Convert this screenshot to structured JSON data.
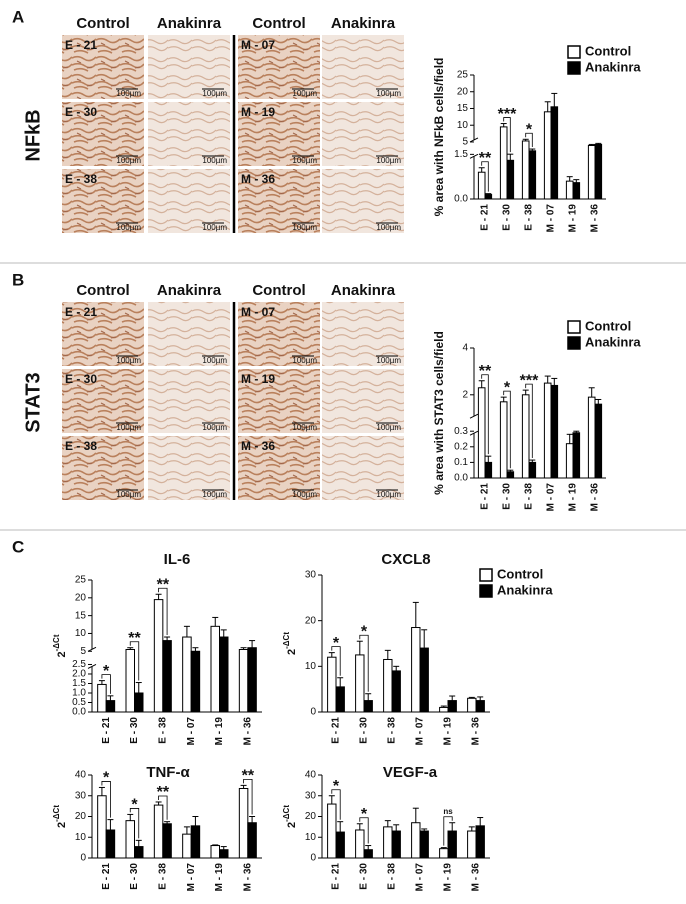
{
  "panels": [
    {
      "letter": "A",
      "marker": "NFkB",
      "column_headers": [
        "Control",
        "Anakinra",
        "Control",
        "Anakinra"
      ],
      "sample_labels": [
        "E - 21",
        "E - 30",
        "E - 38",
        "M - 07",
        "M - 19",
        "M - 36"
      ],
      "scale_label": "100µm"
    },
    {
      "letter": "B",
      "marker": "STAT3",
      "column_headers": [
        "Control",
        "Anakinra",
        "Control",
        "Anakinra"
      ],
      "sample_labels": [
        "E - 21",
        "E - 30",
        "E - 38",
        "M - 07",
        "M - 19",
        "M - 36"
      ],
      "scale_label": "100µm"
    },
    {
      "letter": "C"
    }
  ],
  "chart_data": [
    {
      "type": "bar",
      "ylabel": "% area with NFkB cells/field",
      "legend": true,
      "categories": [
        "E - 21",
        "E - 30",
        "E - 38",
        "M - 07",
        "M - 19",
        "M - 36"
      ],
      "series": [
        {
          "name": "Control",
          "color": "#ffffff",
          "values": [
            0.9,
            9.5,
            5.3,
            14,
            0.6,
            4.0
          ],
          "errors": [
            0.15,
            1,
            0.5,
            3,
            0.15,
            0.3
          ]
        },
        {
          "name": "Anakinra",
          "color": "#000000",
          "values": [
            0.15,
            1.3,
            2.5,
            15.5,
            0.55,
            4.3
          ],
          "errors": [
            0.03,
            0.25,
            0.5,
            4,
            0.1,
            0.3
          ]
        }
      ],
      "ylim": [
        0,
        25
      ],
      "ybreak": [
        1.5,
        5
      ],
      "yticks": [
        {
          "value": 0,
          "label": "0.0"
        },
        1.5,
        5,
        10,
        15,
        20,
        25
      ],
      "annotations": [
        {
          "text": "**",
          "category": "E - 21"
        },
        {
          "text": "***",
          "category": "E - 30"
        },
        {
          "text": "*",
          "category": "E - 38"
        }
      ]
    },
    {
      "type": "bar",
      "ylabel": "% area with STAT3 cells/field",
      "legend": true,
      "categories": [
        "E - 21",
        "E - 30",
        "E - 38",
        "M - 07",
        "M - 19",
        "M - 36"
      ],
      "series": [
        {
          "name": "Control",
          "color": "#ffffff",
          "values": [
            2.3,
            1.7,
            2.0,
            2.5,
            0.22,
            1.9
          ],
          "errors": [
            0.3,
            0.2,
            0.2,
            0.3,
            0.06,
            0.4
          ]
        },
        {
          "name": "Anakinra",
          "color": "#000000",
          "values": [
            0.1,
            0.04,
            0.1,
            2.4,
            0.29,
            1.6
          ],
          "errors": [
            0.04,
            0.01,
            0.015,
            0.3,
            0.01,
            0.2
          ]
        }
      ],
      "ylim": [
        0,
        4
      ],
      "ybreak": [
        0.3,
        1
      ],
      "yticks": [
        {
          "value": 0,
          "label": "0.0"
        },
        0.1,
        0.2,
        0.3,
        2,
        4
      ],
      "annotations": [
        {
          "text": "**",
          "category": "E - 21"
        },
        {
          "text": "*",
          "category": "E - 30"
        },
        {
          "text": "***",
          "category": "E - 38"
        }
      ]
    },
    {
      "type": "bar",
      "title": "IL-6",
      "ylabel": "2",
      "ylabel_sup": "-ΔCt",
      "legend": false,
      "categories": [
        "E - 21",
        "E - 30",
        "E - 38",
        "M - 07",
        "M - 19",
        "M - 36"
      ],
      "series": [
        {
          "name": "Control",
          "color": "#ffffff",
          "values": [
            1.45,
            5.5,
            19.5,
            9,
            12,
            5.5
          ],
          "errors": [
            0.2,
            0.5,
            1.5,
            3,
            2.5,
            0.5
          ]
        },
        {
          "name": "Anakinra",
          "color": "#000000",
          "values": [
            0.6,
            1.0,
            8,
            5,
            9,
            6
          ],
          "errors": [
            0.25,
            0.55,
            1,
            1,
            2,
            2
          ]
        }
      ],
      "ylim": [
        0,
        25
      ],
      "ybreak": [
        2.5,
        5
      ],
      "yticks": [
        {
          "value": 0,
          "label": "0.0"
        },
        0.5,
        {
          "value": 1,
          "label": "1.0"
        },
        1.5,
        {
          "value": 2,
          "label": "2.0"
        },
        2.5,
        5,
        10,
        15,
        20,
        25
      ],
      "annotations": [
        {
          "text": "*",
          "category": "E - 21"
        },
        {
          "text": "**",
          "category": "E - 30"
        },
        {
          "text": "**",
          "category": "E - 38"
        }
      ]
    },
    {
      "type": "bar",
      "title": "CXCL8",
      "ylabel": "2",
      "ylabel_sup": "-ΔCt",
      "legend": true,
      "categories": [
        "E - 21",
        "E - 30",
        "E - 38",
        "M - 07",
        "M - 19",
        "M - 36"
      ],
      "series": [
        {
          "name": "Control",
          "color": "#ffffff",
          "values": [
            12,
            12.5,
            11.5,
            18.5,
            1,
            3
          ],
          "errors": [
            1,
            3,
            2,
            5.5,
            0.3,
            0.2
          ]
        },
        {
          "name": "Anakinra",
          "color": "#000000",
          "values": [
            5.5,
            2.5,
            9,
            14,
            2.5,
            2.5
          ],
          "errors": [
            2,
            1.5,
            1,
            4,
            1,
            0.8
          ]
        }
      ],
      "ylim": [
        0,
        30
      ],
      "yticks": [
        0,
        10,
        20,
        30
      ],
      "annotations": [
        {
          "text": "*",
          "category": "E - 21"
        },
        {
          "text": "*",
          "category": "E - 30"
        }
      ]
    },
    {
      "type": "bar",
      "title": "TNF-α",
      "ylabel": "2",
      "ylabel_sup": "-ΔCt",
      "legend": false,
      "categories": [
        "E - 21",
        "E - 30",
        "E - 38",
        "M - 07",
        "M - 19",
        "M - 36"
      ],
      "series": [
        {
          "name": "Control",
          "color": "#ffffff",
          "values": [
            30,
            18,
            25.5,
            11.5,
            6,
            33.5
          ],
          "errors": [
            4,
            3,
            1.5,
            3.5,
            0.3,
            1.5
          ]
        },
        {
          "name": "Anakinra",
          "color": "#000000",
          "values": [
            13.5,
            5.5,
            16.5,
            15.5,
            4,
            17
          ],
          "errors": [
            5,
            3,
            1,
            4.5,
            1.5,
            3
          ]
        }
      ],
      "ylim": [
        0,
        40
      ],
      "yticks": [
        0,
        10,
        20,
        30,
        40
      ],
      "annotations": [
        {
          "text": "*",
          "category": "E - 21"
        },
        {
          "text": "*",
          "category": "E - 30"
        },
        {
          "text": "**",
          "category": "E - 38"
        },
        {
          "text": "**",
          "category": "M - 36"
        }
      ]
    },
    {
      "type": "bar",
      "title": "VEGF-a",
      "ylabel": "2",
      "ylabel_sup": "-ΔCt",
      "legend": false,
      "categories": [
        "E - 21",
        "E - 30",
        "E - 38",
        "M - 07",
        "M - 19",
        "M - 36"
      ],
      "series": [
        {
          "name": "Control",
          "color": "#ffffff",
          "values": [
            26,
            13.5,
            15,
            17,
            4.5,
            13
          ],
          "errors": [
            4,
            3,
            3,
            7,
            0.5,
            2
          ]
        },
        {
          "name": "Anakinra",
          "color": "#000000",
          "values": [
            12.5,
            4,
            13,
            13,
            13,
            15.5
          ],
          "errors": [
            5,
            2,
            3,
            1,
            4,
            4
          ]
        }
      ],
      "ylim": [
        0,
        40
      ],
      "yticks": [
        0,
        10,
        20,
        30,
        40
      ],
      "annotations": [
        {
          "text": "*",
          "category": "E - 21"
        },
        {
          "text": "*",
          "category": "E - 30"
        },
        {
          "text": "ns",
          "category": "M - 19"
        }
      ]
    }
  ]
}
